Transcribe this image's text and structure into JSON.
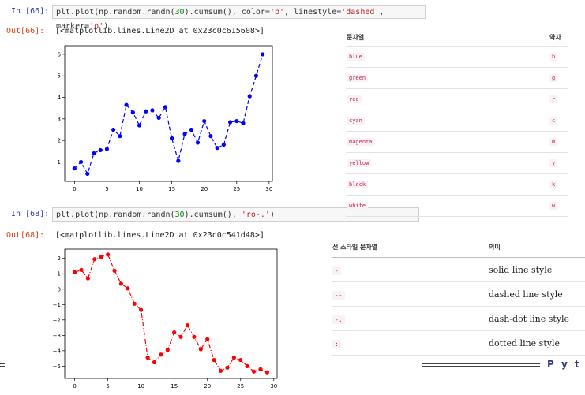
{
  "cell1": {
    "in_prompt": "In [66]:",
    "code_prefix": "plt.plot(np.random.randn(",
    "code_num": "30",
    "code_mid1": ").cumsum(), color=",
    "code_str1": "'b'",
    "code_mid2": ", linestyle=",
    "code_str2": "'dashed'",
    "code_mid3": ", marker=",
    "code_str3": "'o'",
    "code_end": ")",
    "out_prompt": "Out[66]:",
    "out_text": "[<matplotlib.lines.Line2D at 0x23c0c615608>]"
  },
  "cell2": {
    "in_prompt": "In [68]:",
    "code_prefix": "plt.plot(np.random.randn(",
    "code_num": "30",
    "code_mid": ").cumsum(), ",
    "code_str": "'ro-.'",
    "code_end": ")",
    "out_prompt": "Out[68]:",
    "out_text": "[<matplotlib.lines.Line2D at 0x23c0c541d48>]"
  },
  "color_table": {
    "headers": [
      "문자열",
      "약자"
    ],
    "rows": [
      [
        "blue",
        "b"
      ],
      [
        "green",
        "g"
      ],
      [
        "red",
        "r"
      ],
      [
        "cyan",
        "c"
      ],
      [
        "magenta",
        "m"
      ],
      [
        "yellow",
        "y"
      ],
      [
        "black",
        "k"
      ],
      [
        "white",
        "w"
      ]
    ]
  },
  "style_table": {
    "headers": [
      "선 스타일 문자열",
      "의미"
    ],
    "rows": [
      [
        "-",
        "solid line style"
      ],
      [
        "--",
        "dashed line style"
      ],
      [
        "-.",
        "dash-dot line style"
      ],
      [
        ":",
        "dotted line style"
      ]
    ]
  },
  "footer_text": "Pyt",
  "chart_data": [
    {
      "type": "line",
      "color": "#0000ff",
      "linestyle": "dashed",
      "marker": "o",
      "x": [
        0,
        1,
        2,
        3,
        4,
        5,
        6,
        7,
        8,
        9,
        10,
        11,
        12,
        13,
        14,
        15,
        16,
        17,
        18,
        19,
        20,
        21,
        22,
        23,
        24,
        25,
        26,
        27,
        28,
        29
      ],
      "y": [
        0.7,
        1.0,
        0.45,
        1.4,
        1.55,
        1.6,
        2.5,
        2.2,
        3.65,
        3.3,
        2.7,
        3.35,
        3.4,
        3.05,
        3.55,
        2.1,
        1.05,
        2.3,
        2.5,
        1.9,
        2.9,
        2.2,
        1.65,
        1.8,
        2.85,
        2.9,
        2.8,
        4.05,
        5.0,
        6.0
      ],
      "xlim": [
        -1.5,
        30.5
      ],
      "ylim": [
        0.1,
        6.4
      ],
      "xticks": [
        0,
        5,
        10,
        15,
        20,
        25,
        30
      ],
      "yticks": [
        1,
        2,
        3,
        4,
        5,
        6
      ],
      "title": "",
      "xlabel": "",
      "ylabel": ""
    },
    {
      "type": "line",
      "color": "#ff0000",
      "linestyle": "dashdot",
      "marker": "o",
      "x": [
        0,
        1,
        2,
        3,
        4,
        5,
        6,
        7,
        8,
        9,
        10,
        11,
        12,
        13,
        14,
        15,
        16,
        17,
        18,
        19,
        20,
        21,
        22,
        23,
        24,
        25,
        26,
        27,
        28,
        29
      ],
      "y": [
        1.1,
        1.25,
        0.7,
        1.95,
        2.1,
        2.25,
        1.2,
        0.35,
        0.05,
        -0.95,
        -1.35,
        -4.45,
        -4.75,
        -4.25,
        -3.95,
        -2.8,
        -3.1,
        -2.35,
        -3.1,
        -3.9,
        -3.25,
        -4.6,
        -5.3,
        -5.1,
        -4.45,
        -4.6,
        -5.0,
        -5.35,
        -5.2,
        -5.4
      ],
      "xlim": [
        -1.5,
        30.5
      ],
      "ylim": [
        -5.8,
        2.6
      ],
      "xticks": [
        0,
        5,
        10,
        15,
        20,
        25,
        30
      ],
      "yticks": [
        2,
        1,
        0,
        -1,
        -2,
        -3,
        -4,
        -5
      ],
      "title": "",
      "xlabel": "",
      "ylabel": ""
    }
  ]
}
